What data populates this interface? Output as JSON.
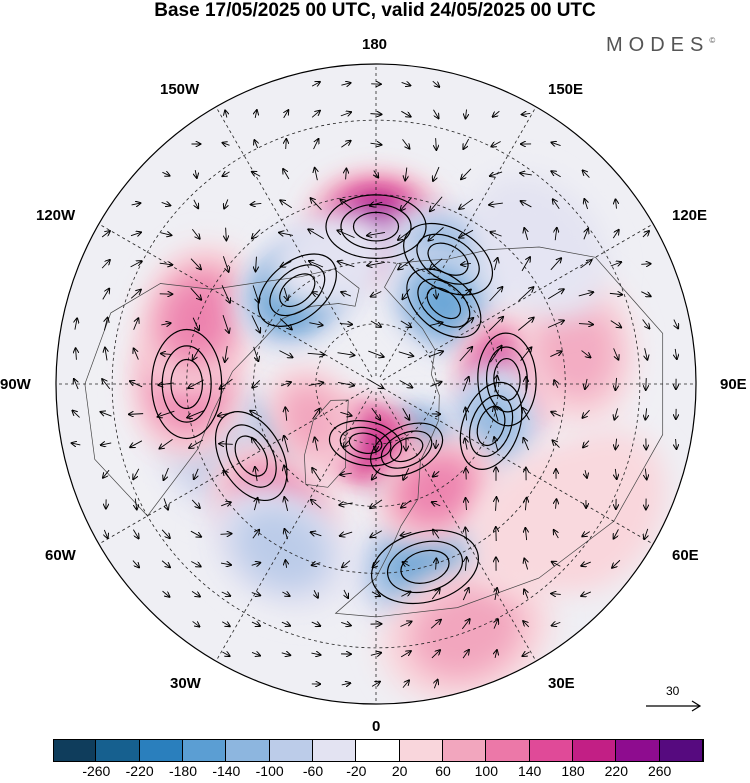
{
  "title": "Base 17/05/2025 00 UTC, valid 24/05/2025 00 UTC",
  "brand": "MODES",
  "brand_mark": "©",
  "longitude_labels": {
    "top": "180",
    "bottom": "0",
    "left": "90W",
    "right": "90E",
    "upper_left_outer": "150W",
    "upper_left_inner": "120W",
    "upper_right_outer": "150E",
    "upper_right_inner": "120E",
    "lower_left_inner": "60W",
    "lower_left_outer": "30W",
    "lower_right_inner": "60E",
    "lower_right_outer": "30E"
  },
  "reference_vector_label": "30",
  "colorbar": {
    "colors": [
      "#0f3d5c",
      "#16608f",
      "#2a7fbd",
      "#5b9ed3",
      "#8db6df",
      "#bccce9",
      "#e3e3f2",
      "#ffffff",
      "#f9d6dc",
      "#f2a6be",
      "#ec78a8",
      "#e04a98",
      "#c21f85",
      "#8e0c8f",
      "#560a7f"
    ],
    "tick_labels": [
      "-260",
      "-220",
      "-180",
      "-140",
      "-100",
      "-60",
      "-20",
      "20",
      "60",
      "100",
      "140",
      "180",
      "220",
      "260"
    ]
  },
  "map": {
    "projection": "north-polar-stereographic",
    "anomaly_blobs": [
      {
        "lon": 180,
        "lat": 52,
        "value": 260
      },
      {
        "lon": 150,
        "lat": 55,
        "value": -140
      },
      {
        "lon": 140,
        "lat": 64,
        "value": -160
      },
      {
        "lon": 92,
        "lat": 58,
        "value": 220
      },
      {
        "lon": 70,
        "lat": 60,
        "value": -140
      },
      {
        "lon": 25,
        "lat": 72,
        "value": -220
      },
      {
        "lon": 350,
        "lat": 75,
        "value": 200
      },
      {
        "lon": 15,
        "lat": 45,
        "value": -160
      },
      {
        "lon": 30,
        "lat": 60,
        "value": 120
      },
      {
        "lon": 300,
        "lat": 55,
        "value": -200
      },
      {
        "lon": 290,
        "lat": 48,
        "value": -100
      },
      {
        "lon": 270,
        "lat": 45,
        "value": 140
      },
      {
        "lon": 250,
        "lat": 45,
        "value": 120
      },
      {
        "lon": 220,
        "lat": 60,
        "value": -200
      },
      {
        "lon": 200,
        "lat": 58,
        "value": -60
      },
      {
        "lon": 320,
        "lat": 52,
        "value": 120
      },
      {
        "lon": 300,
        "lat": 72,
        "value": 100
      },
      {
        "lon": 330,
        "lat": 45,
        "value": -80
      },
      {
        "lon": 20,
        "lat": 30,
        "value": 80
      },
      {
        "lon": 50,
        "lat": 40,
        "value": 60
      },
      {
        "lon": 100,
        "lat": 42,
        "value": 80
      },
      {
        "lon": 130,
        "lat": 40,
        "value": -60
      },
      {
        "lon": 60,
        "lat": 32,
        "value": 60
      }
    ]
  }
}
